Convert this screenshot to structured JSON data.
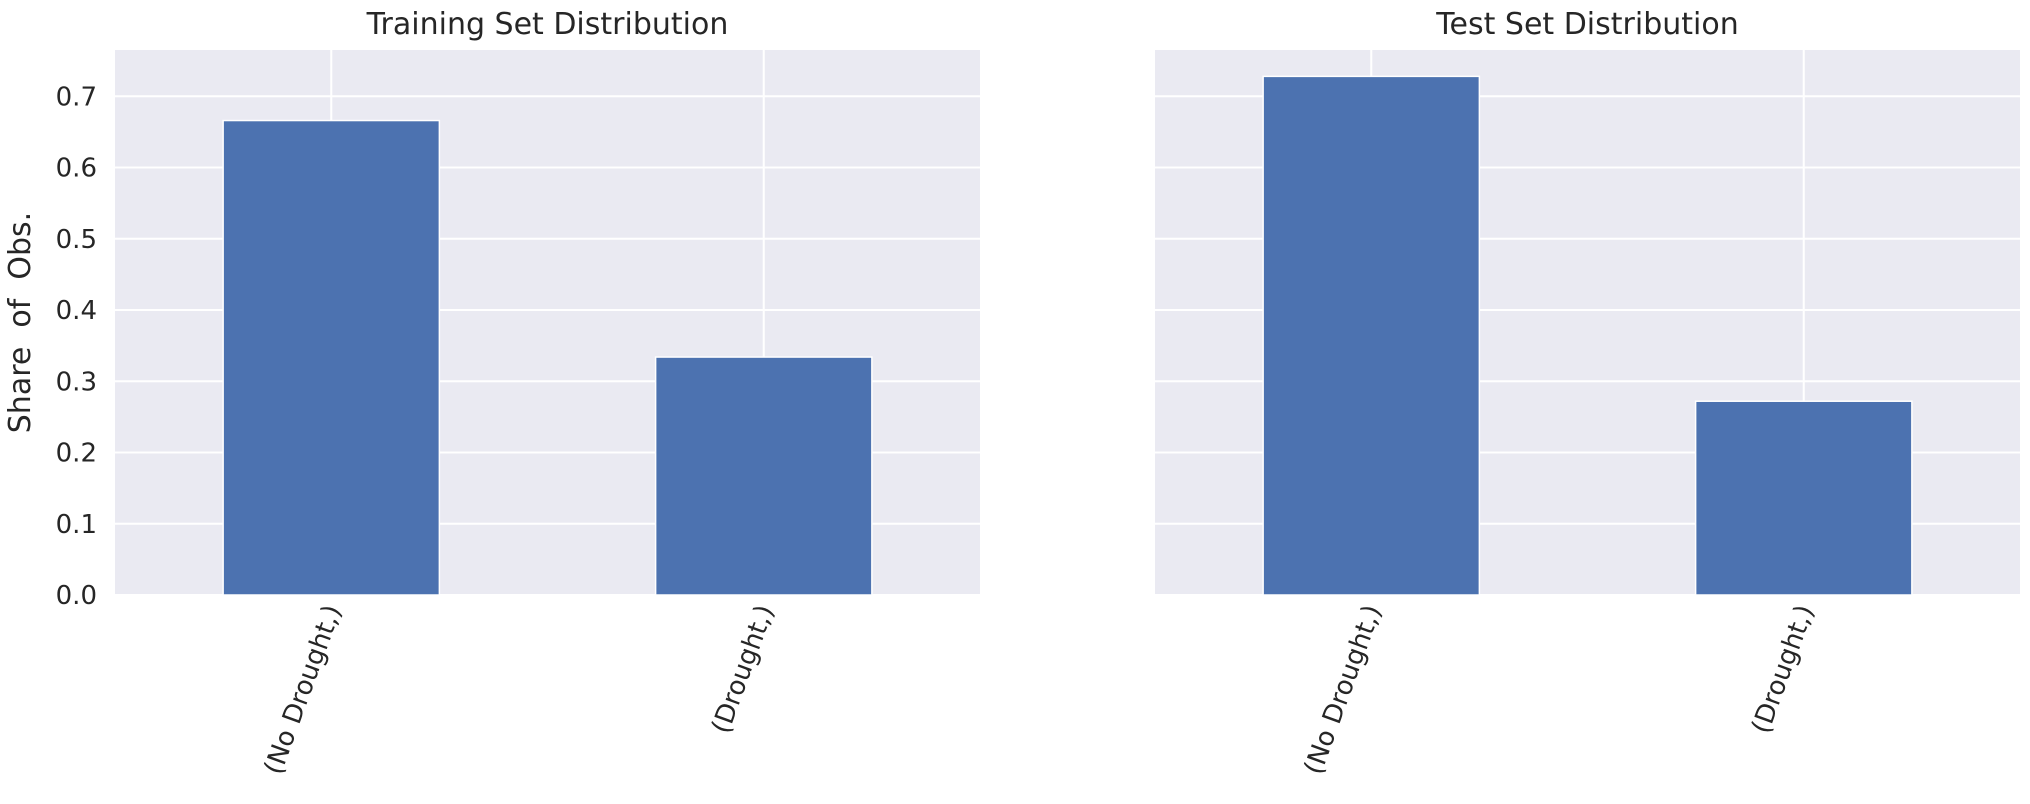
{
  "chart_data": [
    {
      "type": "bar",
      "title": "Training Set Distribution",
      "ylabel": "Share  of  Obs.",
      "xlabel": "",
      "categories": [
        "(No Drought,)",
        "(Drought,)"
      ],
      "values": [
        0.666,
        0.334
      ],
      "ylim": [
        0,
        0.765
      ],
      "yticks": [
        "0.0",
        "0.1",
        "0.2",
        "0.3",
        "0.4",
        "0.5",
        "0.6",
        "0.7"
      ],
      "grid": true,
      "bar_color": "#4c72b0",
      "background": "#eaeaf2"
    },
    {
      "type": "bar",
      "title": "Test Set Distribution",
      "ylabel": "",
      "xlabel": "",
      "categories": [
        "(No Drought,)",
        "(Drought,)"
      ],
      "values": [
        0.728,
        0.272
      ],
      "ylim": [
        0,
        0.765
      ],
      "grid": true,
      "bar_color": "#4c72b0",
      "background": "#eaeaf2"
    }
  ]
}
